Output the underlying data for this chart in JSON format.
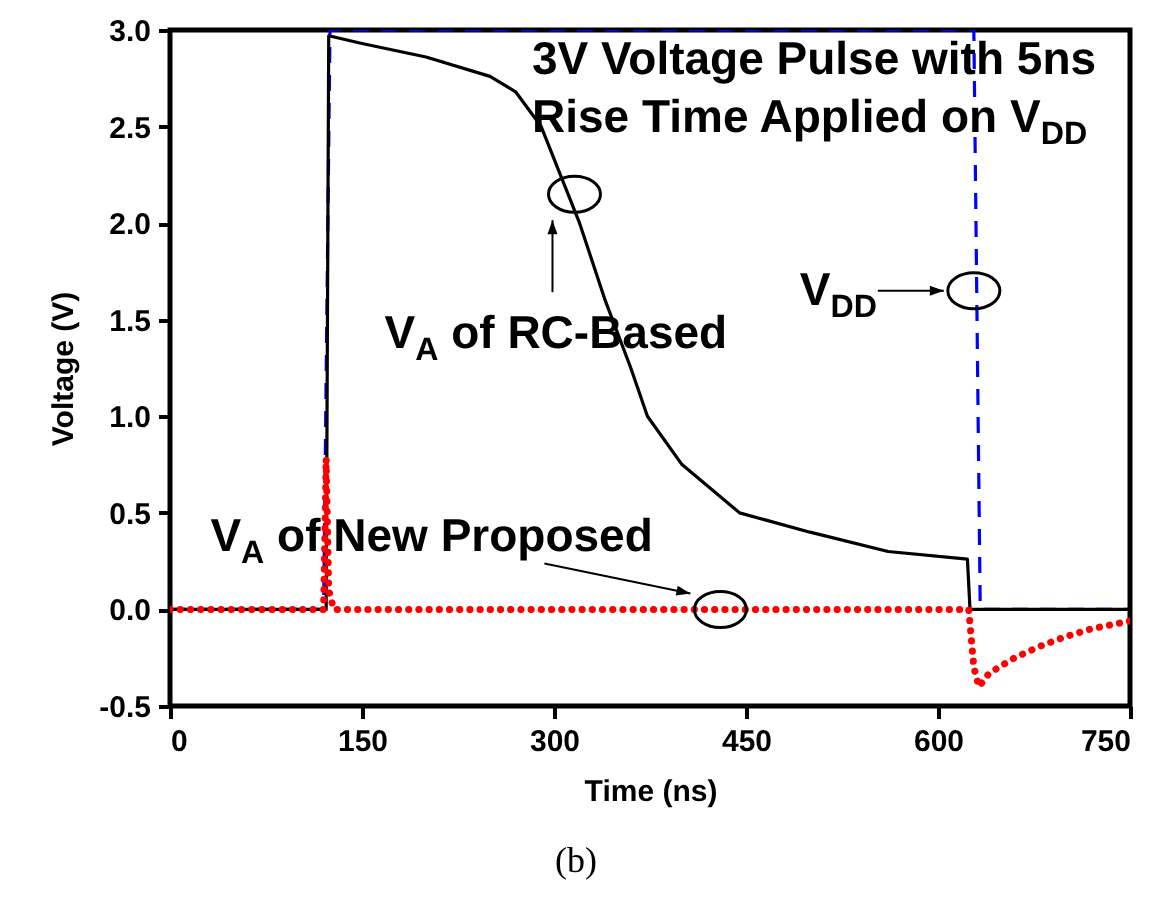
{
  "chart_data": {
    "type": "line",
    "xlabel": "Time (ns)",
    "ylabel": "Voltage (V)",
    "xlim": [
      0,
      750
    ],
    "xticks": [
      0,
      150,
      300,
      450,
      600,
      750
    ],
    "ylim": [
      -0.5,
      3.0
    ],
    "yticks": [
      {
        "value": -0.5,
        "label": "-0.5"
      },
      {
        "value": 0,
        "label": "0.0"
      },
      {
        "value": 0.5,
        "label": "0.5"
      },
      {
        "value": 1,
        "label": "1.0"
      },
      {
        "value": 1.5,
        "label": "1.5"
      },
      {
        "value": 2,
        "label": "2.0"
      },
      {
        "value": 2.5,
        "label": "2.5"
      },
      {
        "value": 3,
        "label": "3.0"
      }
    ],
    "grid": false,
    "series": [
      {
        "color": "#0000ff",
        "line_style": "dashed",
        "x": [
          0,
          120,
          125,
          628,
          633,
          750
        ],
        "values": [
          0,
          0,
          3,
          3,
          0,
          0
        ]
      },
      {
        "color": "#000000",
        "line_style": "solid",
        "x": [
          0,
          122,
          124,
          150,
          200,
          250,
          270,
          290,
          305,
          320,
          340,
          360,
          373,
          400,
          445,
          500,
          561,
          623,
          625,
          750
        ],
        "values": [
          0,
          0,
          2.97,
          2.93,
          2.86,
          2.76,
          2.68,
          2.5,
          2.25,
          2.0,
          1.6,
          1.25,
          1.0,
          0.75,
          0.5,
          0.4,
          0.3,
          0.26,
          0,
          0
        ]
      },
      {
        "color": "#ff0000",
        "line_style": "dotted",
        "x": [
          0,
          120,
          122,
          124,
          128,
          624,
          628,
          632,
          640,
          660,
          680,
          700,
          720,
          750
        ],
        "values": [
          0,
          0,
          0.78,
          0.1,
          0,
          0,
          -0.3,
          -0.4,
          -0.33,
          -0.25,
          -0.19,
          -0.14,
          -0.1,
          -0.06
        ]
      }
    ],
    "annotations": [
      "3V Voltage Pulse with 5ns Rise Time Applied on V$_{DD}$",
      {
        "text": "V$_{A}$ of RC-Based",
        "x": 316,
        "y": 2.15
      },
      {
        "text": "V$_{DD}$",
        "x": 628,
        "y": 1.65
      },
      {
        "text": "V$_{A}$ of New Proposed",
        "x": 430,
        "y": 0
      },
      "(b)"
    ]
  }
}
